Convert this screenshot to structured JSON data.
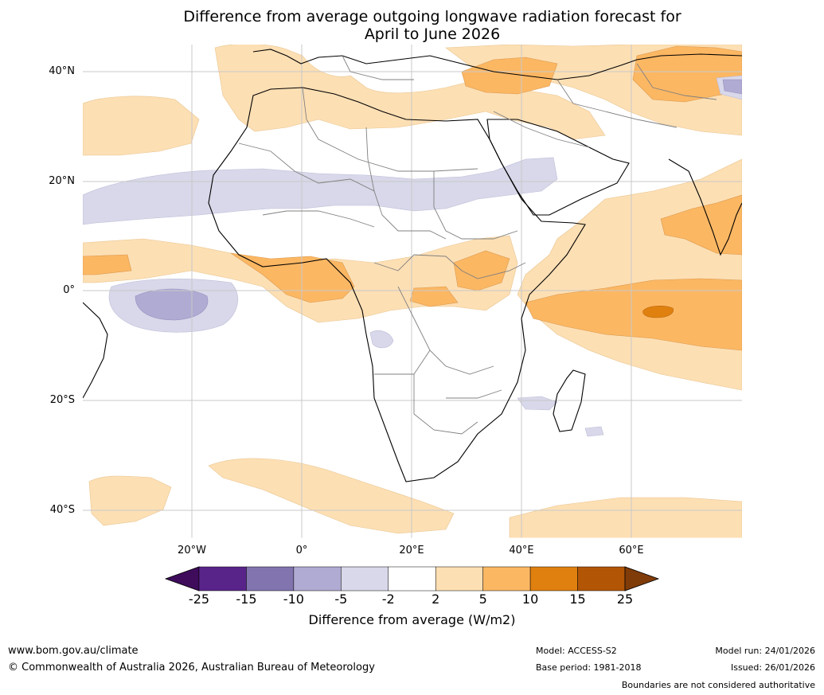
{
  "title_line1": "Difference from average outgoing longwave radiation forecast for",
  "title_line2": "April to June 2026",
  "lat_labels": [
    "40°N",
    "20°N",
    "0°",
    "20°S",
    "40°S"
  ],
  "lon_labels": [
    "20°W",
    "0°",
    "20°E",
    "40°E",
    "60°E"
  ],
  "colorbar": {
    "ticks": [
      "-25",
      "-15",
      "-10",
      "-5",
      "-2",
      "2",
      "5",
      "10",
      "15",
      "25"
    ],
    "colors": [
      "#3f0c5c",
      "#58248a",
      "#8274ae",
      "#b0abd2",
      "#d8d8ea",
      "#ffffff",
      "#fddfb4",
      "#fcb763",
      "#e0800f",
      "#b25606",
      "#7f3b08"
    ],
    "label": "Difference from average (W/m2)"
  },
  "footer": {
    "website": "www.bom.gov.au/climate",
    "copyright": "© Commonwealth of Australia 2026, Australian Bureau of Meteorology",
    "model": "Model: ACCESS-S2",
    "base_period": "Base period: 1981-2018",
    "model_run": "Model run: 24/01/2026",
    "issued": "Issued: 26/01/2026",
    "disclaimer": "Boundaries are not considered authoritative"
  },
  "map_colors": {
    "land_outline": "#000000",
    "border": "#808080",
    "grid": "#c8c8c8"
  }
}
